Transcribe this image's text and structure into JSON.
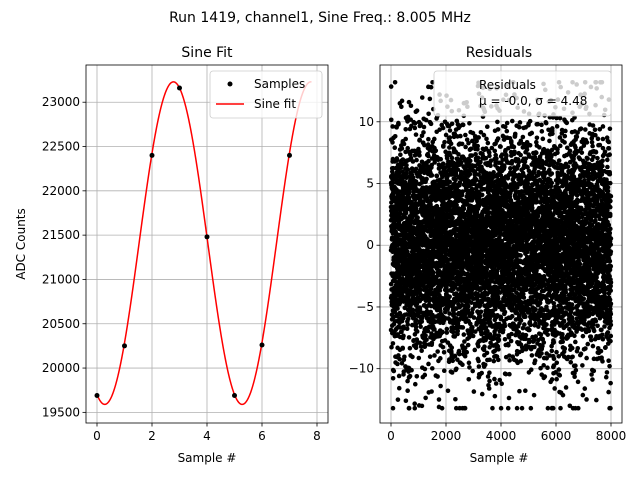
{
  "suptitle": "Run 1419, channel1, Sine Freq.: 8.005 MHz",
  "chart_data": [
    {
      "type": "line",
      "title": "Sine Fit",
      "xlabel": "Sample #",
      "ylabel": "ADC Counts",
      "xlim": [
        -0.4,
        8.4
      ],
      "ylim": [
        19380,
        23420
      ],
      "xticks": [
        0,
        2,
        4,
        6,
        8
      ],
      "yticks": [
        19500,
        20000,
        20500,
        21000,
        21500,
        22000,
        22500,
        23000
      ],
      "grid": true,
      "legend_position": "top-right",
      "series": [
        {
          "name": "Samples",
          "style": "markers",
          "color": "#000000",
          "x": [
            0,
            1,
            2,
            3,
            4,
            5,
            6,
            7
          ],
          "y": [
            19690,
            20250,
            22400,
            23160,
            21480,
            19690,
            20260,
            22400
          ]
        },
        {
          "name": "Sine fit",
          "style": "line",
          "color": "#ff0000",
          "x_range": [
            0,
            7.8
          ],
          "model": {
            "amplitude": 1820,
            "offset": 21410,
            "period": 4.9975,
            "phase_peak_x": 2.78
          }
        }
      ]
    },
    {
      "type": "scatter",
      "title": "Residuals",
      "xlabel": "Sample #",
      "ylabel": "",
      "xlim": [
        -400,
        8400
      ],
      "ylim": [
        -14.4,
        14.6
      ],
      "xticks": [
        0,
        2000,
        4000,
        6000,
        8000
      ],
      "yticks": [
        -10,
        -5,
        0,
        5,
        10
      ],
      "grid": true,
      "legend_position": "top-right",
      "series": [
        {
          "name": "Residuals",
          "stats": "μ = -0.0, σ = 4.48",
          "color": "#000000",
          "n_points": 8000,
          "mean": 0.0,
          "std": 4.48,
          "min": -13.2,
          "max": 13.2
        }
      ]
    }
  ]
}
